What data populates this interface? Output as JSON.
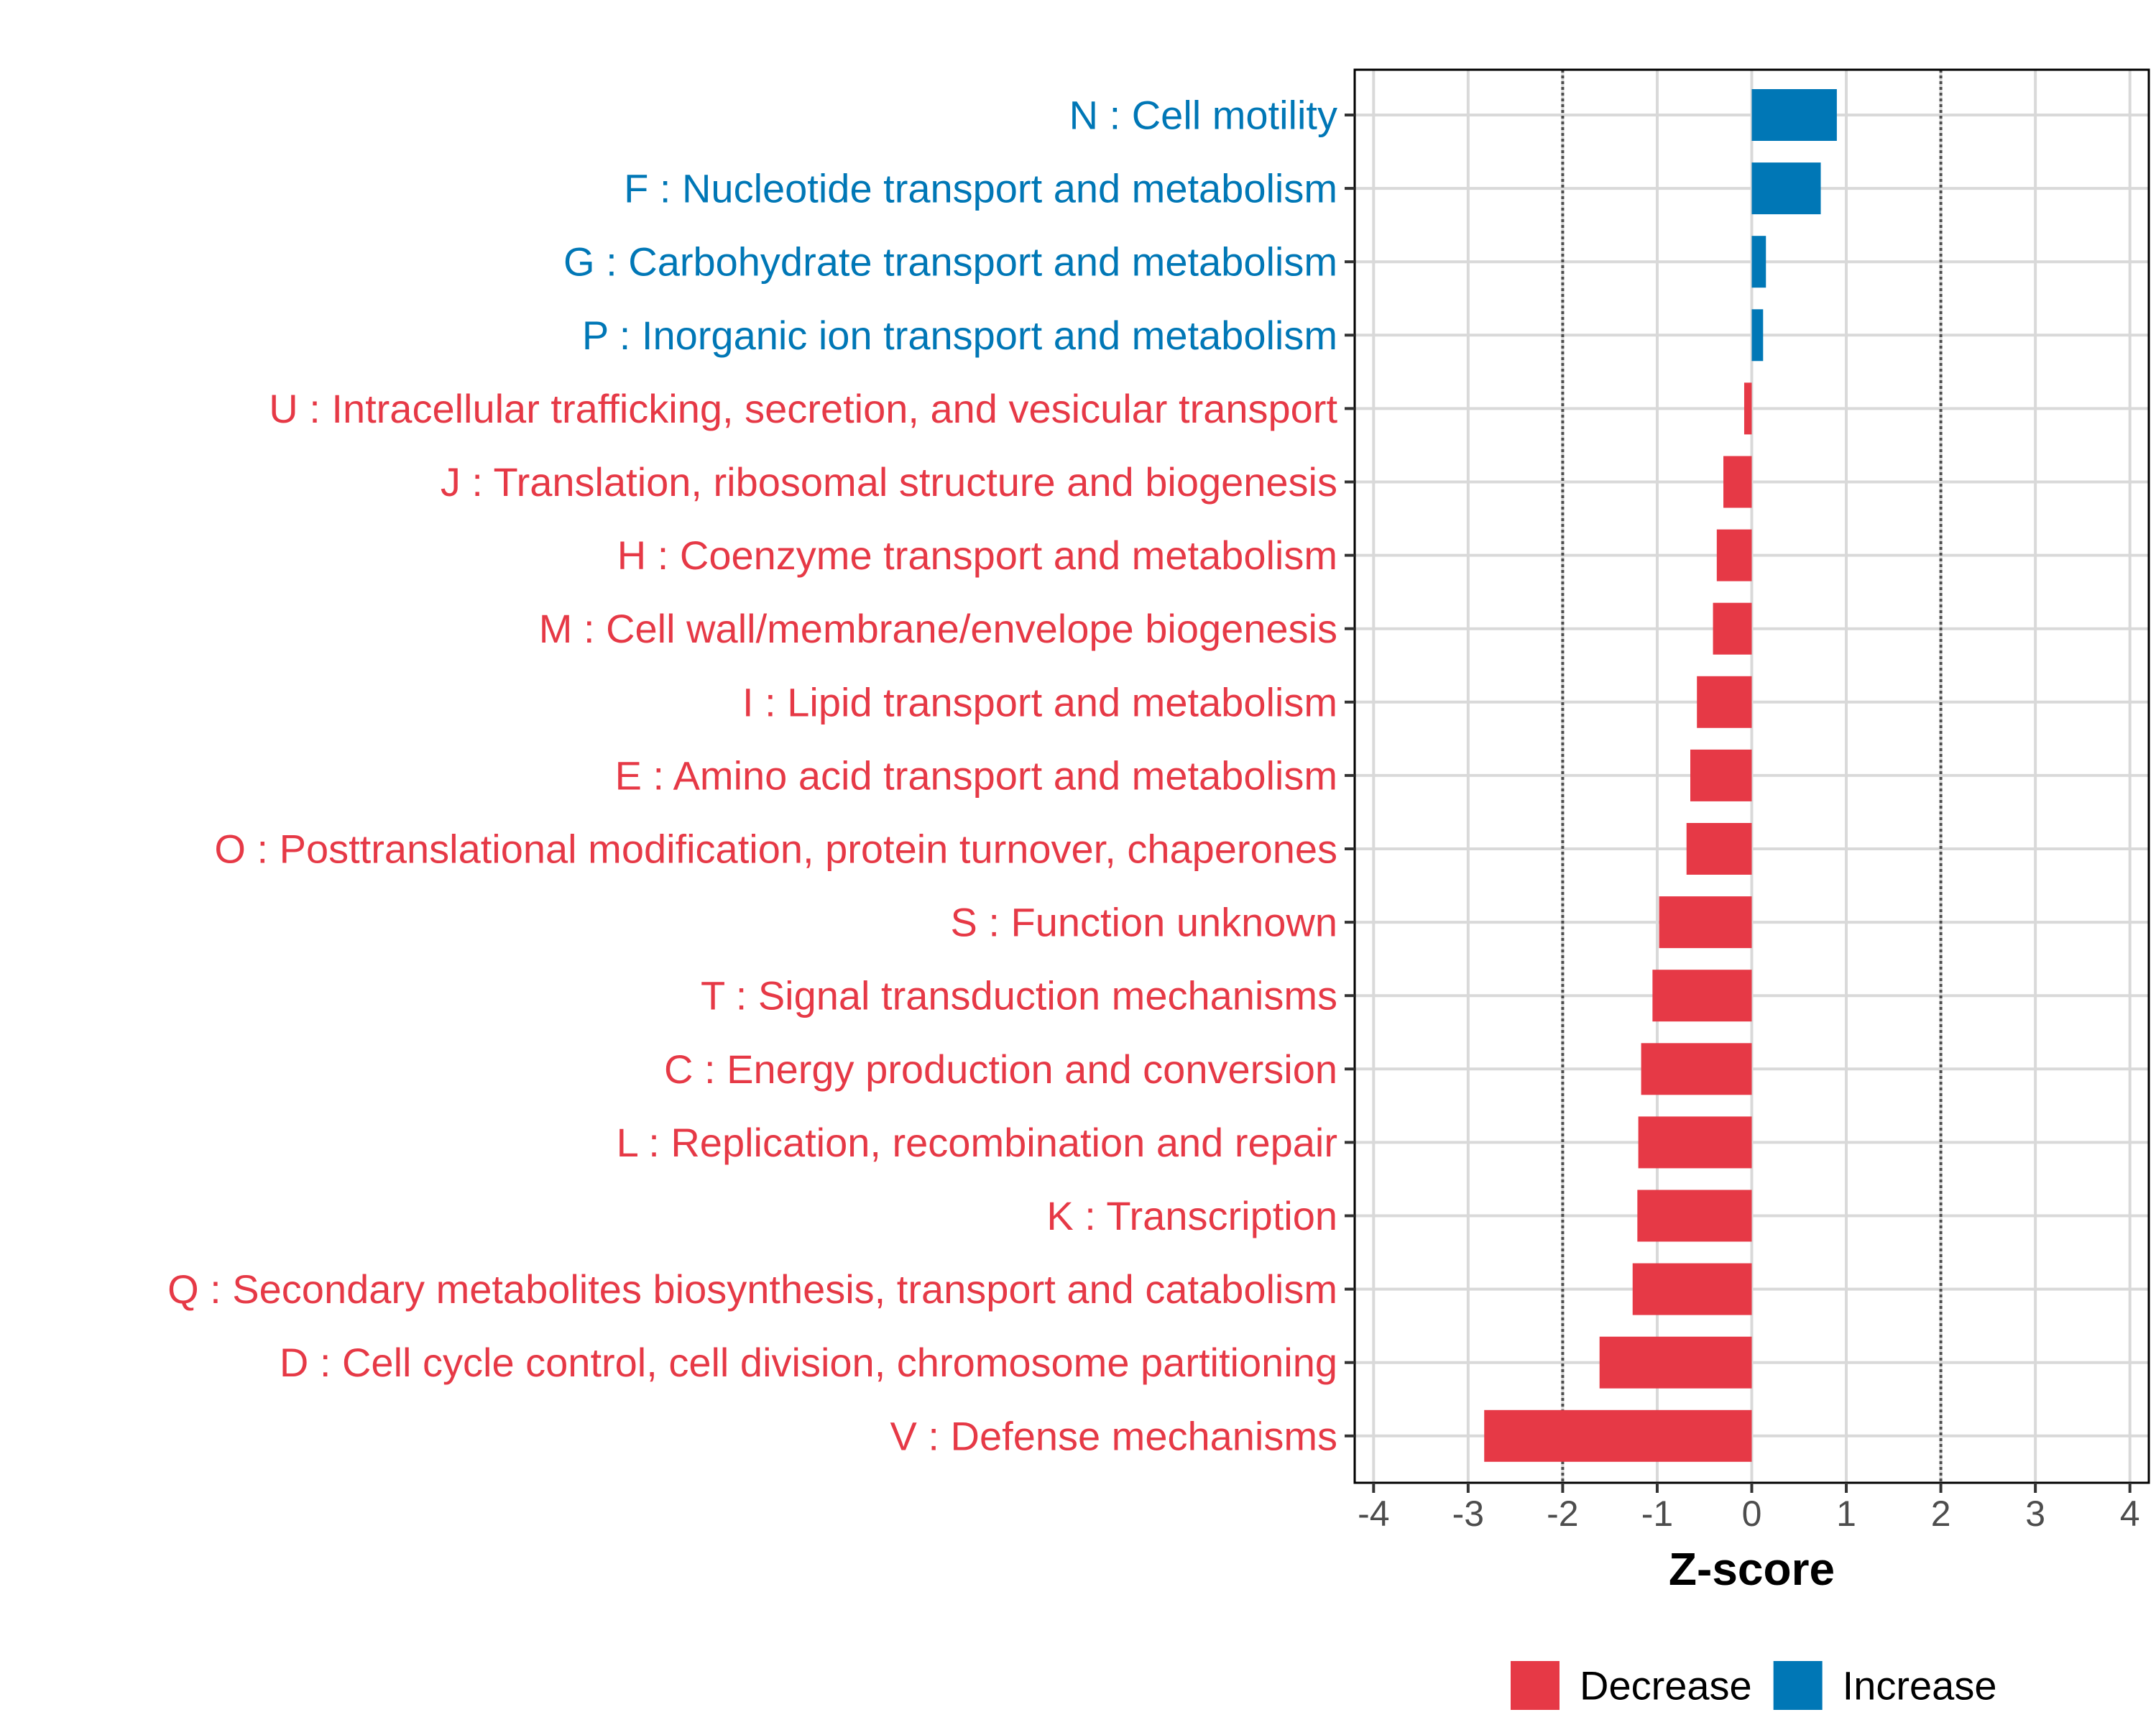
{
  "chart_data": {
    "type": "bar",
    "orientation": "horizontal",
    "xlabel": "Z-score",
    "ylabel": "",
    "xlim": [
      -4.2,
      4.2
    ],
    "xticks": [
      -4,
      -3,
      -2,
      -1,
      0,
      1,
      2,
      3,
      4
    ],
    "reference_lines": [
      -2,
      2
    ],
    "grid": true,
    "legend_position": "bottom",
    "colors": {
      "Decrease": "#e63946",
      "Increase": "#0077b6"
    },
    "legend": [
      {
        "name": "Decrease",
        "color": "#e63946"
      },
      {
        "name": "Increase",
        "color": "#0077b6"
      }
    ],
    "categories": [
      "N : Cell motility",
      "F : Nucleotide transport and metabolism",
      "G : Carbohydrate transport and metabolism",
      "P : Inorganic ion transport and metabolism",
      "U : Intracellular trafficking, secretion, and vesicular transport",
      "J : Translation, ribosomal structure and biogenesis",
      "H : Coenzyme transport and metabolism",
      "M : Cell wall/membrane/envelope biogenesis",
      "I : Lipid transport and metabolism",
      "E : Amino acid transport and metabolism",
      "O : Posttranslational modification, protein turnover, chaperones",
      "S : Function unknown",
      "T : Signal transduction mechanisms",
      "C : Energy production and conversion",
      "L : Replication, recombination and repair",
      "K : Transcription",
      "Q : Secondary metabolites biosynthesis, transport and catabolism",
      "D : Cell cycle control, cell division, chromosome partitioning",
      "V : Defense mechanisms"
    ],
    "values": [
      0.9,
      0.73,
      0.15,
      0.12,
      -0.08,
      -0.3,
      -0.37,
      -0.41,
      -0.58,
      -0.65,
      -0.69,
      -0.98,
      -1.05,
      -1.17,
      -1.2,
      -1.21,
      -1.26,
      -1.61,
      -2.83
    ],
    "groups": [
      "Increase",
      "Increase",
      "Increase",
      "Increase",
      "Decrease",
      "Decrease",
      "Decrease",
      "Decrease",
      "Decrease",
      "Decrease",
      "Decrease",
      "Decrease",
      "Decrease",
      "Decrease",
      "Decrease",
      "Decrease",
      "Decrease",
      "Decrease",
      "Decrease"
    ]
  }
}
